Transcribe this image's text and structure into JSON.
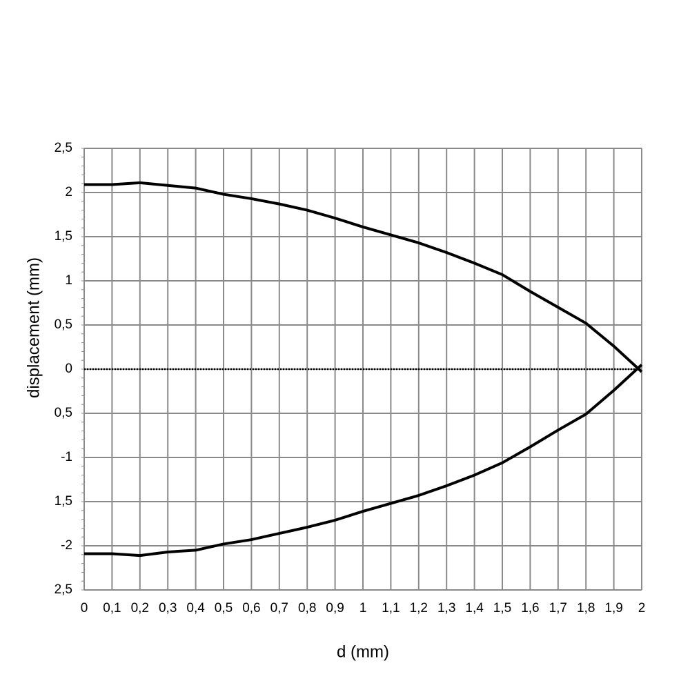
{
  "chart_data": {
    "type": "line",
    "x_label": "d (mm)",
    "y_label": "displacement (mm)",
    "x": [
      0,
      0.1,
      0.2,
      0.3,
      0.4,
      0.5,
      0.6,
      0.7,
      0.8,
      0.9,
      1,
      1.1,
      1.2,
      1.3,
      1.4,
      1.5,
      1.6,
      1.7,
      1.8,
      1.9,
      2
    ],
    "series": [
      {
        "color": "#000000",
        "values": [
          2.09,
          2.09,
          2.11,
          2.08,
          2.05,
          1.98,
          1.93,
          1.87,
          1.8,
          1.71,
          1.61,
          1.52,
          1.43,
          1.32,
          1.2,
          1.07,
          0.88,
          0.7,
          0.52,
          0.26,
          -0.03
        ]
      },
      {
        "color": "#000000",
        "values": [
          -2.09,
          -2.09,
          -2.11,
          -2.07,
          -2.05,
          -1.98,
          -1.93,
          -1.86,
          -1.79,
          -1.71,
          -1.61,
          -1.52,
          -1.43,
          -1.32,
          -1.2,
          -1.06,
          -0.88,
          -0.69,
          -0.51,
          -0.24,
          0.05
        ]
      }
    ],
    "xlim": [
      0,
      2
    ],
    "xticks": [
      0,
      {
        "value": 0.1,
        "label": "0,1"
      },
      {
        "value": 0.2,
        "label": "0,2"
      },
      {
        "value": 0.3,
        "label": "0,3"
      },
      {
        "value": 0.4,
        "label": "0,4"
      },
      {
        "value": 0.5,
        "label": "0,5"
      },
      {
        "value": 0.6,
        "label": "0,6"
      },
      {
        "value": 0.7,
        "label": "0,7"
      },
      {
        "value": 0.8,
        "label": "0,8"
      },
      {
        "value": 0.9,
        "label": "0,9"
      },
      1,
      {
        "value": 1.1,
        "label": "1,1"
      },
      {
        "value": 1.2,
        "label": "1,2"
      },
      {
        "value": 1.3,
        "label": "1,3"
      },
      {
        "value": 1.4,
        "label": "1,4"
      },
      {
        "value": 1.5,
        "label": "1,5"
      },
      {
        "value": 1.6,
        "label": "1,6"
      },
      {
        "value": 1.7,
        "label": "1,7"
      },
      {
        "value": 1.8,
        "label": "1,8"
      },
      {
        "value": 1.9,
        "label": "1,9"
      },
      2
    ],
    "ylim": [
      -2.5,
      2.5
    ],
    "yticks": [
      {
        "value": 2.5,
        "label": "2,5"
      },
      2,
      {
        "value": 1.5,
        "label": "1,5"
      },
      1,
      {
        "value": 0.5,
        "label": "0,5"
      },
      0,
      {
        "value": -0.5,
        "label": "0,5"
      },
      -1,
      {
        "value": -1.5,
        "label": "1,5"
      },
      -2,
      {
        "value": -2.5,
        "label": "2,5"
      }
    ],
    "grid": true
  }
}
